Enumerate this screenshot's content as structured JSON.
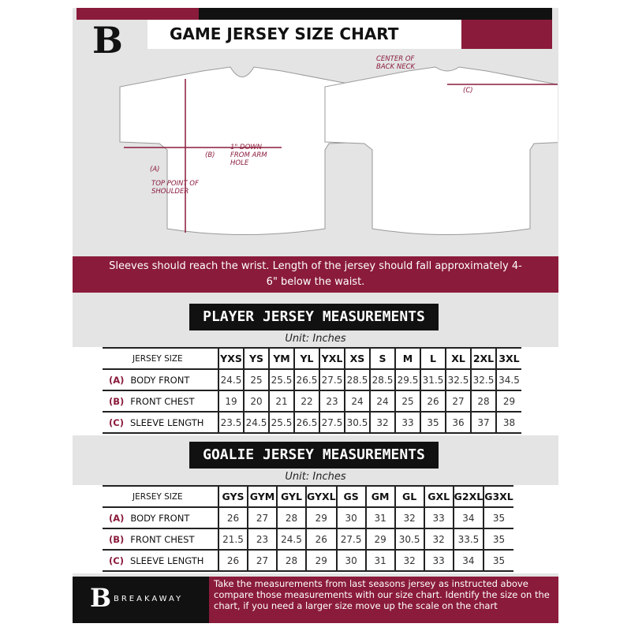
{
  "header": {
    "title": "GAME JERSEY SIZE CHART",
    "brand_logo": "B"
  },
  "diagram": {
    "a_label": "(A)",
    "a_note": "TOP POINT OF SHOULDER",
    "b_label": "(B)",
    "b_note": "1\" DOWN FROM ARM HOLE",
    "c_label": "(C)",
    "c_note": "CENTER OF BACK NECK"
  },
  "note": "Sleeves should reach the wrist. Length of the jersey should fall approximately 4-6\" below the waist.",
  "player": {
    "title": "PLAYER JERSEY MEASUREMENTS",
    "unit": "Unit: Inches",
    "size_label": "JERSEY SIZE",
    "sizes": [
      "YXS",
      "YS",
      "YM",
      "YL",
      "YXL",
      "XS",
      "S",
      "M",
      "L",
      "XL",
      "2XL",
      "3XL"
    ],
    "rows": [
      {
        "code": "(A)",
        "name": "BODY FRONT",
        "values": [
          "24.5",
          "25",
          "25.5",
          "26.5",
          "27.5",
          "28.5",
          "28.5",
          "29.5",
          "31.5",
          "32.5",
          "32.5",
          "34.5"
        ]
      },
      {
        "code": "(B)",
        "name": "FRONT CHEST",
        "values": [
          "19",
          "20",
          "21",
          "22",
          "23",
          "24",
          "24",
          "25",
          "26",
          "27",
          "28",
          "29"
        ]
      },
      {
        "code": "(C)",
        "name": "SLEEVE LENGTH",
        "values": [
          "23.5",
          "24.5",
          "25.5",
          "26.5",
          "27.5",
          "30.5",
          "32",
          "33",
          "35",
          "36",
          "37",
          "38"
        ]
      }
    ]
  },
  "goalie": {
    "title": "GOALIE JERSEY MEASUREMENTS",
    "unit": "Unit: Inches",
    "size_label": "JERSEY SIZE",
    "sizes": [
      "GYS",
      "GYM",
      "GYL",
      "GYXL",
      "GS",
      "GM",
      "GL",
      "GXL",
      "G2XL",
      "G3XL"
    ],
    "rows": [
      {
        "code": "(A)",
        "name": "BODY FRONT",
        "values": [
          "26",
          "27",
          "28",
          "29",
          "30",
          "31",
          "32",
          "33",
          "34",
          "35"
        ]
      },
      {
        "code": "(B)",
        "name": "FRONT CHEST",
        "values": [
          "21.5",
          "23",
          "24.5",
          "26",
          "27.5",
          "29",
          "30.5",
          "32",
          "33.5",
          "35"
        ]
      },
      {
        "code": "(C)",
        "name": "SLEEVE LENGTH",
        "values": [
          "26",
          "27",
          "28",
          "29",
          "30",
          "31",
          "32",
          "33",
          "34",
          "35"
        ]
      }
    ]
  },
  "footer": {
    "brand": "BREAKAWAY",
    "text": "Take the measurements from last seasons jersey as instructed above compare those measurements  with our size chart. Identify the size on the chart, if you need a larger size move up the scale on the chart"
  },
  "colors": {
    "maroon": "#8a1b3b",
    "black": "#111111",
    "background": "#e4e4e4"
  }
}
